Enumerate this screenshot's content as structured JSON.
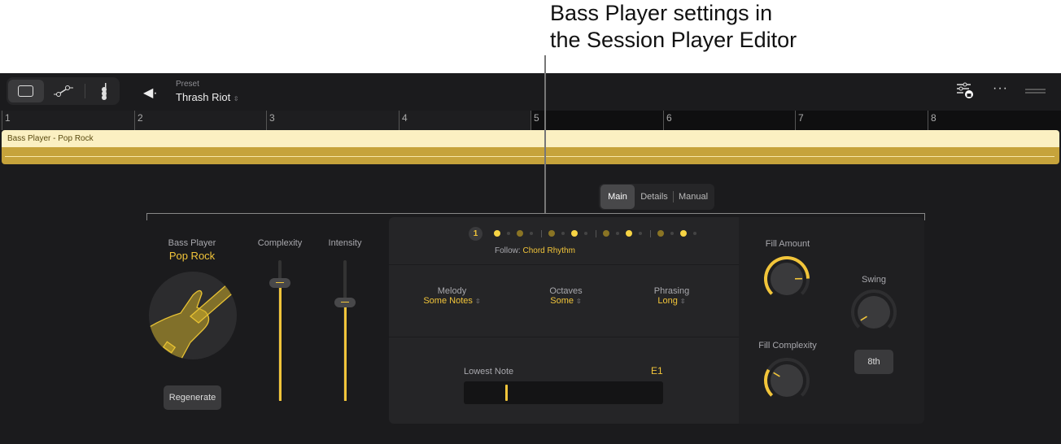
{
  "callout": {
    "line1": "Bass Player settings in",
    "line2": "the Session Player Editor"
  },
  "toolbar": {
    "preset_label": "Preset",
    "preset_value": "Thrash Riot",
    "preset_chevron": "⌃⌄"
  },
  "ruler": {
    "bars": [
      "1",
      "2",
      "3",
      "4",
      "5",
      "6",
      "7",
      "8"
    ]
  },
  "region": {
    "name": "Bass Player - Pop Rock"
  },
  "tabs": [
    "Main",
    "Details",
    "Manual"
  ],
  "player": {
    "label": "Bass Player",
    "style": "Pop Rock",
    "regenerate": "Regenerate"
  },
  "sliders": {
    "complexity": {
      "label": "Complexity",
      "value": 0.84
    },
    "intensity": {
      "label": "Intensity",
      "value": 0.7
    }
  },
  "rhythm": {
    "beat_number": "1",
    "follow_label": "Follow:",
    "follow_value": "Chord Rhythm",
    "dots": [
      2,
      0,
      1,
      0,
      "|",
      1,
      0,
      2,
      0,
      "|",
      1,
      0,
      2,
      0,
      "|",
      1,
      0,
      2,
      0
    ]
  },
  "selectors": [
    {
      "label": "Melody",
      "value": "Some Notes"
    },
    {
      "label": "Octaves",
      "value": "Some"
    },
    {
      "label": "Phrasing",
      "value": "Long"
    }
  ],
  "lowest_note": {
    "label": "Lowest Note",
    "value": "E1",
    "position": 0.21
  },
  "knobs": {
    "fill_amount": {
      "label": "Fill Amount",
      "value": 0.83
    },
    "fill_complexity": {
      "label": "Fill Complexity",
      "value": 0.28
    },
    "swing": {
      "label": "Swing",
      "value": 0.05
    }
  },
  "swing_division": "8th",
  "colors": {
    "accent": "#f2c53a",
    "bg": "#1b1b1d",
    "panel": "#252527"
  }
}
